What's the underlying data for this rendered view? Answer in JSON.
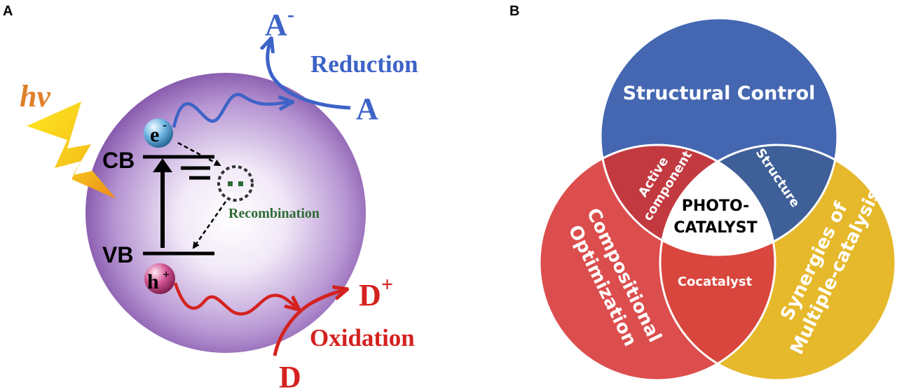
{
  "panel_a": {
    "letter": "A",
    "light": "hv",
    "cb": "CB",
    "vb": "VB",
    "electron": "e",
    "electron_sup": "-",
    "hole": "h",
    "hole_sup": "+",
    "recombination": "Recombination",
    "reduction": "Reduction",
    "acceptor": "A",
    "acceptor_reduced": "A",
    "acceptor_reduced_sup": "-",
    "oxidation": "Oxidation",
    "donor": "D",
    "donor_oxidized": "D",
    "donor_oxidized_sup": "+"
  },
  "panel_b": {
    "letter": "B",
    "circle_top": "Structural Control",
    "circle_left": "Compositional Optimization",
    "circle_left_line1": "Compositional",
    "circle_left_line2": "Optimization",
    "circle_right_line1": "Synergies of",
    "circle_right_line2": "Multiple-catalysis",
    "overlap_top_left_line1": "Active",
    "overlap_top_left_line2": "component",
    "overlap_top_right": "Structure",
    "overlap_bottom": "Cocatalyst",
    "center_line1": "PHOTO-",
    "center_line2": "CATALYST"
  },
  "colors": {
    "sphere_edge": "#8a5db0",
    "blue": "#3d63c7",
    "red": "#d4221f",
    "lightning": "#f2d21b",
    "hv": "#e0802a",
    "recombination": "#2f6b35",
    "venn_blue": "#4567b2",
    "venn_red": "#dc4d4d",
    "venn_yellow": "#e6b92c",
    "venn_red_overlap": "#c2393f",
    "venn_blue_overlap": "#3e5f97",
    "venn_bottom_overlap": "#d8463d"
  }
}
